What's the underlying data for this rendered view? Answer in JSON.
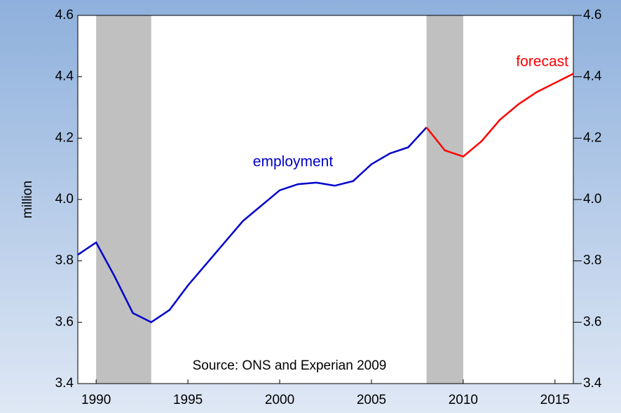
{
  "chart_data": {
    "type": "line",
    "ylabel": "million",
    "source": "Source: ONS and Experian 2009",
    "xlim": [
      1989,
      2016
    ],
    "xticks": [
      1990,
      1995,
      2000,
      2005,
      2010,
      2015
    ],
    "ylim": [
      3.4,
      4.6
    ],
    "yticks": [
      3.4,
      3.6,
      3.8,
      {
        "value": 4,
        "label": "4.0"
      },
      4.2,
      4.4,
      4.6
    ],
    "y2lim": [
      3.4,
      4.6
    ],
    "y2ticks": [
      3.4,
      3.6,
      3.8,
      {
        "value": 4,
        "label": "4.0"
      },
      4.2,
      4.4,
      4.6
    ],
    "shaded_periods": [
      [
        1990,
        1993
      ],
      [
        2008,
        2010
      ]
    ],
    "shade_color": "#c0c0c0",
    "series": [
      {
        "name": "employment",
        "color": "#0000cc",
        "x": [
          1989,
          1990,
          1991,
          1992,
          1993,
          1994,
          1995,
          1996,
          1997,
          1998,
          1999,
          2000,
          2001,
          2002,
          2003,
          2004,
          2005,
          2006,
          2007,
          2008
        ],
        "values": [
          3.82,
          3.86,
          3.75,
          3.63,
          3.6,
          3.64,
          3.72,
          3.79,
          3.86,
          3.93,
          3.98,
          4.03,
          4.05,
          4.055,
          4.045,
          4.06,
          4.115,
          4.15,
          4.17,
          4.235
        ]
      },
      {
        "name": "forecast",
        "color": "#ff0000",
        "x": [
          2008,
          2009,
          2010,
          2011,
          2012,
          2013,
          2014,
          2015,
          2016
        ],
        "values": [
          4.235,
          4.16,
          4.14,
          4.19,
          4.26,
          4.31,
          4.35,
          4.38,
          4.41
        ]
      }
    ]
  }
}
